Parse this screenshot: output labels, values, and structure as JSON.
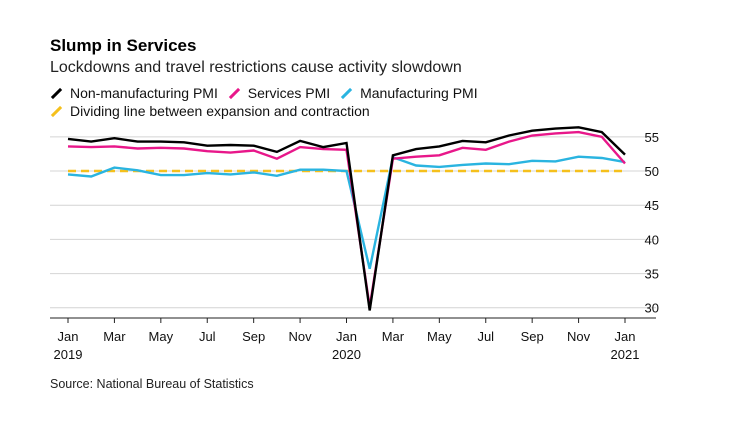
{
  "title": "Slump in Services",
  "subtitle": "Lockdowns and travel restrictions cause activity slowdown",
  "source": "Source: National Bureau of Statistics",
  "legend": [
    {
      "label": "Non-manufacturing PMI",
      "color": "#000000"
    },
    {
      "label": "Services PMI",
      "color": "#e8178a"
    },
    {
      "label": "Manufacturing PMI",
      "color": "#2ab4e0"
    },
    {
      "label": "Dividing line between expansion and contraction",
      "color": "#f5c01c"
    }
  ],
  "chart_data": {
    "type": "line",
    "title": "Slump in Services",
    "xlabel": "",
    "ylabel": "",
    "ylim": [
      28.5,
      56
    ],
    "yticks": [
      30,
      35,
      40,
      45,
      50,
      55
    ],
    "x": [
      "2019-01",
      "2019-02",
      "2019-03",
      "2019-04",
      "2019-05",
      "2019-06",
      "2019-07",
      "2019-08",
      "2019-09",
      "2019-10",
      "2019-11",
      "2019-12",
      "2020-01",
      "2020-02",
      "2020-03",
      "2020-04",
      "2020-05",
      "2020-06",
      "2020-07",
      "2020-08",
      "2020-09",
      "2020-10",
      "2020-11",
      "2020-12",
      "2021-01"
    ],
    "xtick_labels": [
      {
        "index": 0,
        "label": "Jan",
        "year": "2019"
      },
      {
        "index": 2,
        "label": "Mar"
      },
      {
        "index": 4,
        "label": "May"
      },
      {
        "index": 6,
        "label": "Jul"
      },
      {
        "index": 8,
        "label": "Sep"
      },
      {
        "index": 10,
        "label": "Nov"
      },
      {
        "index": 12,
        "label": "Jan",
        "year": "2020"
      },
      {
        "index": 14,
        "label": "Mar"
      },
      {
        "index": 16,
        "label": "May"
      },
      {
        "index": 18,
        "label": "Jul"
      },
      {
        "index": 20,
        "label": "Sep"
      },
      {
        "index": 22,
        "label": "Nov"
      },
      {
        "index": 24,
        "label": "Jan",
        "year": "2021"
      }
    ],
    "series": [
      {
        "name": "Non-manufacturing PMI",
        "color": "#000000",
        "values": [
          54.7,
          54.3,
          54.8,
          54.3,
          54.3,
          54.2,
          53.7,
          53.8,
          53.7,
          52.8,
          54.4,
          53.5,
          54.1,
          29.6,
          52.3,
          53.2,
          53.6,
          54.4,
          54.2,
          55.2,
          55.9,
          56.2,
          56.4,
          55.7,
          52.4
        ]
      },
      {
        "name": "Services PMI",
        "color": "#e8178a",
        "values": [
          53.6,
          53.5,
          53.6,
          53.3,
          53.4,
          53.3,
          52.9,
          52.7,
          53.0,
          51.8,
          53.5,
          53.2,
          53.1,
          30.1,
          51.8,
          52.1,
          52.3,
          53.4,
          53.1,
          54.3,
          55.2,
          55.5,
          55.7,
          55.0,
          51.1
        ]
      },
      {
        "name": "Manufacturing PMI",
        "color": "#2ab4e0",
        "values": [
          49.5,
          49.2,
          50.5,
          50.1,
          49.4,
          49.4,
          49.7,
          49.5,
          49.8,
          49.3,
          50.2,
          50.2,
          50.0,
          35.7,
          52.0,
          50.8,
          50.6,
          50.9,
          51.1,
          51.0,
          51.5,
          51.4,
          52.1,
          51.9,
          51.3
        ]
      },
      {
        "name": "Dividing line between expansion and contraction",
        "color": "#f5c01c",
        "values": [
          50,
          50,
          50,
          50,
          50,
          50,
          50,
          50,
          50,
          50,
          50,
          50,
          50,
          50,
          50,
          50,
          50,
          50,
          50,
          50,
          50,
          50,
          50,
          50,
          50
        ],
        "style": "dashed"
      }
    ]
  }
}
